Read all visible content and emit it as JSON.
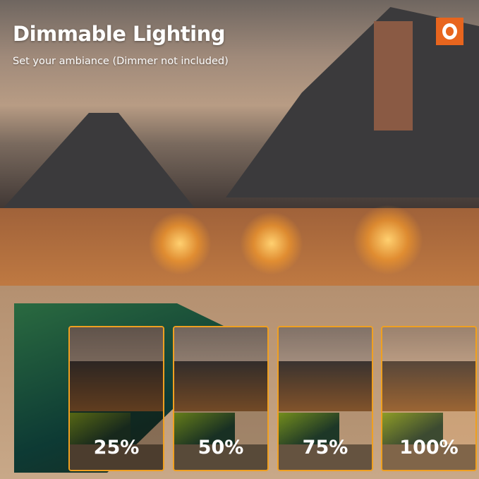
{
  "header": {
    "title": "Dimmable Lighting",
    "subtitle": "Set your ambiance (Dimmer not included)"
  },
  "brand": {
    "logo_icon": "orange-square-ring-logo",
    "accent": "#e8651e"
  },
  "brightness_levels": [
    {
      "label": "25%",
      "level": 0.25
    },
    {
      "label": "50%",
      "level": 0.5
    },
    {
      "label": "75%",
      "level": 0.75
    },
    {
      "label": "100%",
      "level": 1.0
    }
  ],
  "panel_border_color": "#f0a020"
}
